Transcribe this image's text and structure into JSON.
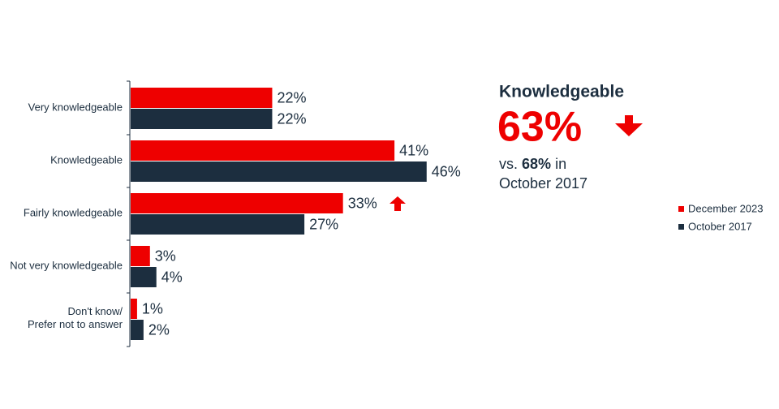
{
  "chart_data": {
    "type": "bar",
    "orientation": "horizontal",
    "categories": [
      "Very knowledgeable",
      "Knowledgeable",
      "Fairly knowledgeable",
      "Not very knowledgeable",
      "Don't know/\nPrefer not to answer"
    ],
    "series": [
      {
        "name": "December 2023",
        "color": "#ee0000",
        "values": [
          22,
          41,
          33,
          3,
          1
        ],
        "value_labels": [
          "22%",
          "41%",
          "33%",
          "3%",
          "1%"
        ]
      },
      {
        "name": "October 2017",
        "color": "#1c2e3f",
        "values": [
          22,
          46,
          27,
          4,
          2
        ],
        "value_labels": [
          "22%",
          "46%",
          "27%",
          "4%",
          "2%"
        ]
      }
    ],
    "xlim": [
      0,
      100
    ],
    "legend": "right",
    "callout": {
      "title": "Knowledgeable",
      "value": "63%",
      "comparison_prefix": "vs.",
      "comparison_value": "68%",
      "comparison_suffix": "in",
      "comparison_period": "October 2017"
    }
  }
}
